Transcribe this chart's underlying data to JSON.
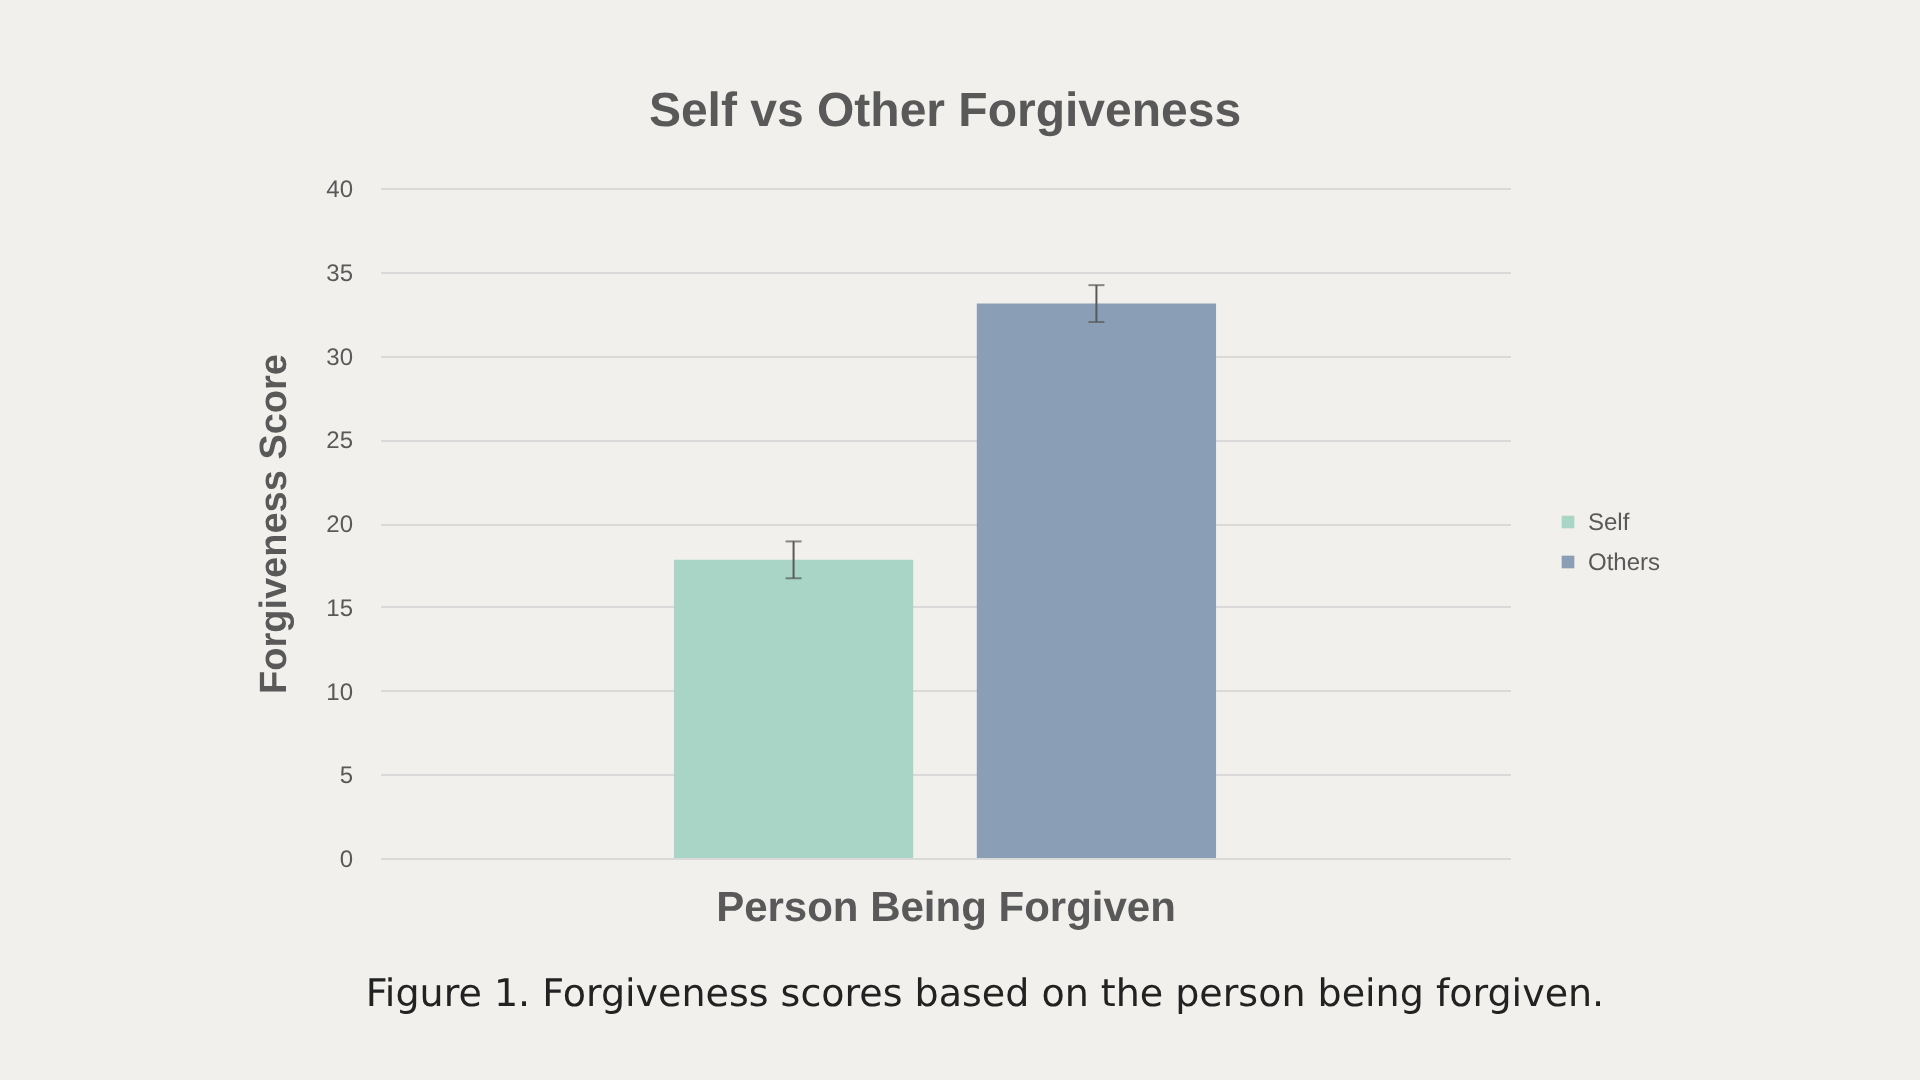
{
  "chart_data": {
    "type": "bar",
    "title": "Self vs Other Forgiveness",
    "xlabel": "Person Being Forgiven",
    "ylabel": "Forgiveness Score",
    "categories": [
      null
    ],
    "series": [
      {
        "name": "Self",
        "color": "#a9d5c6",
        "values": [
          17.8
        ],
        "errors": [
          1.1
        ]
      },
      {
        "name": "Others",
        "color": "#8a9fb5",
        "values": [
          33.1
        ],
        "errors": [
          1.1
        ]
      }
    ],
    "ylim": [
      0,
      40
    ],
    "yticks": [
      0,
      5,
      10,
      15,
      20,
      25,
      30,
      35,
      40
    ],
    "grid": "y",
    "legend": "right",
    "tick_labels": "y",
    "annotations": [
      "Figure 1.  Forgiveness scores based on the person being forgiven."
    ]
  }
}
